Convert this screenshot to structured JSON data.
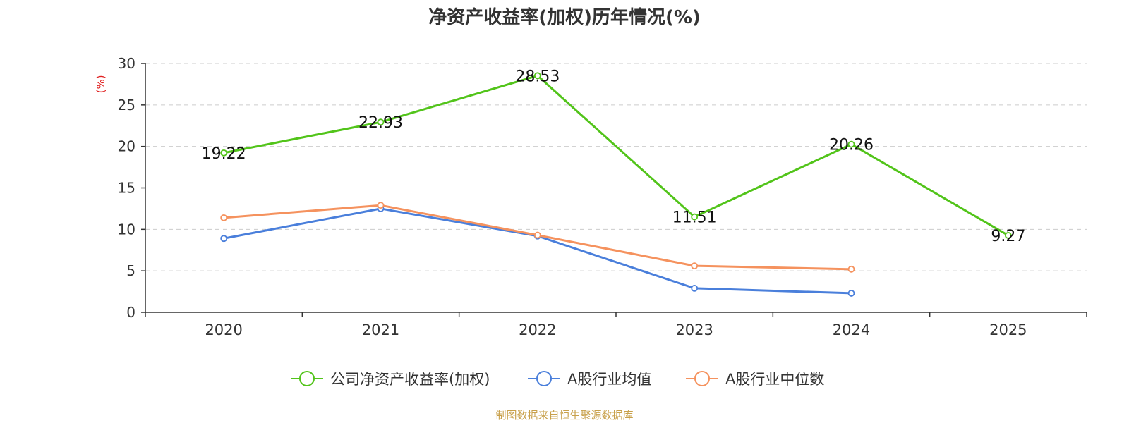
{
  "chart_data": {
    "type": "line",
    "title": "净资产收益率(加权)历年情况(%)",
    "ylabel": "(%)",
    "xlabel": "",
    "ylim": [
      0,
      30
    ],
    "yticks": [
      0,
      5,
      10,
      15,
      20,
      25,
      30
    ],
    "categories": [
      "2020",
      "2021",
      "2022",
      "2023",
      "2024",
      "2025"
    ],
    "series": [
      {
        "name": "公司净资产收益率(加权)",
        "values": [
          19.22,
          22.93,
          28.53,
          11.51,
          20.26,
          9.27
        ],
        "labels": [
          "19.22",
          "22.93",
          "28.53",
          "11.51",
          "20.26",
          "9.27"
        ],
        "color": "#52c41a"
      },
      {
        "name": "A股行业均值",
        "values": [
          8.9,
          12.5,
          9.2,
          2.9,
          2.3,
          null
        ],
        "color": "#4a7fdb"
      },
      {
        "name": "A股行业中位数",
        "values": [
          11.4,
          12.9,
          9.3,
          5.6,
          5.2,
          null
        ],
        "color": "#f5925e"
      }
    ],
    "legend_position": "bottom",
    "grid": true
  },
  "footer": {
    "source": "制图数据来自恒生聚源数据库"
  }
}
